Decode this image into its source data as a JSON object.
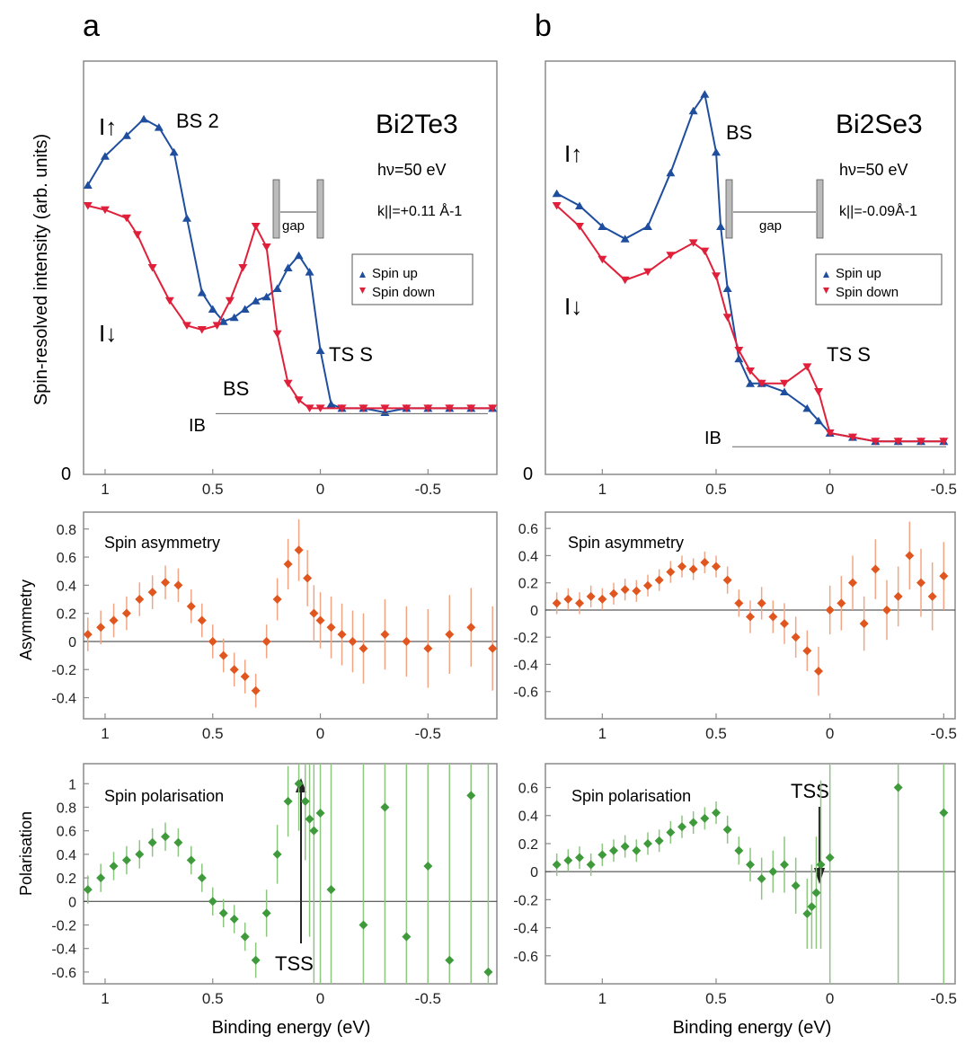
{
  "panel_labels": [
    "a",
    "b"
  ],
  "text": {
    "ylabel_intensity": "Spin-resolved intensity (arb. units)",
    "ylabel_asym": "Asymmetry",
    "ylabel_pol": "Polarisation",
    "xlabel": "Binding energy (eV)",
    "zero_label": "0",
    "title_asym": "Spin asymmetry",
    "title_pol": "Spin polarisation",
    "legend_up": "Spin up",
    "legend_down": "Spin down",
    "gap": "gap",
    "bs": "BS",
    "bs2": "BS 2",
    "tss_top": "TS S",
    "tss": "TSS",
    "i_up": "I↑",
    "i_down": "I↓",
    "i_b": "IB",
    "hv": "hν=50 eV",
    "material_a": "Bi2Te3",
    "material_b": "Bi2Se3",
    "k_a": "k||=+0.11 Å-1",
    "k_b": "k||=-0.09Å-1"
  },
  "colors": {
    "spin_up": "#1f4e9e",
    "spin_down": "#e0203a",
    "asymmetry": "#e0561e",
    "asym_err": "#f2a585",
    "polarisation": "#3e9a3a",
    "pol_err": "#8cc67f",
    "axis": "#8a8a8a"
  },
  "chart_data": [
    {
      "panel": "a",
      "row": "intensity",
      "type": "scatter",
      "xlabel": "",
      "ylabel": "Spin-resolved intensity (arb. units)",
      "xlim": [
        1.1,
        -0.82
      ],
      "xticks": [
        1,
        0.5,
        0,
        -0.5
      ],
      "ylim": [
        0,
        1
      ],
      "series": [
        {
          "name": "Spin up",
          "x": [
            1.08,
            1.0,
            0.9,
            0.82,
            0.75,
            0.68,
            0.62,
            0.55,
            0.5,
            0.45,
            0.4,
            0.35,
            0.3,
            0.25,
            0.2,
            0.15,
            0.1,
            0.05,
            0.0,
            -0.05,
            -0.1,
            -0.2,
            -0.3,
            -0.4,
            -0.5,
            -0.6,
            -0.7,
            -0.8
          ],
          "y": [
            0.7,
            0.77,
            0.82,
            0.86,
            0.84,
            0.78,
            0.62,
            0.44,
            0.4,
            0.37,
            0.38,
            0.4,
            0.42,
            0.43,
            0.45,
            0.5,
            0.53,
            0.49,
            0.3,
            0.17,
            0.16,
            0.16,
            0.15,
            0.16,
            0.16,
            0.16,
            0.16,
            0.16
          ]
        },
        {
          "name": "Spin down",
          "x": [
            1.08,
            1.0,
            0.9,
            0.85,
            0.78,
            0.7,
            0.62,
            0.55,
            0.48,
            0.42,
            0.36,
            0.3,
            0.25,
            0.2,
            0.15,
            0.1,
            0.05,
            0.0,
            -0.1,
            -0.2,
            -0.3,
            -0.4,
            -0.5,
            -0.6,
            -0.7,
            -0.8
          ],
          "y": [
            0.65,
            0.64,
            0.62,
            0.58,
            0.5,
            0.42,
            0.36,
            0.35,
            0.36,
            0.42,
            0.5,
            0.6,
            0.55,
            0.34,
            0.22,
            0.18,
            0.16,
            0.16,
            0.16,
            0.16,
            0.16,
            0.16,
            0.16,
            0.16,
            0.16,
            0.16
          ]
        }
      ]
    },
    {
      "panel": "b",
      "row": "intensity",
      "type": "scatter",
      "xlim": [
        1.25,
        -0.55
      ],
      "xticks": [
        1,
        0.5,
        0,
        -0.5
      ],
      "ylim": [
        0,
        1
      ],
      "series": [
        {
          "name": "Spin up",
          "x": [
            1.2,
            1.1,
            1.0,
            0.9,
            0.8,
            0.7,
            0.6,
            0.55,
            0.5,
            0.48,
            0.45,
            0.4,
            0.35,
            0.3,
            0.2,
            0.1,
            0.05,
            0.0,
            -0.1,
            -0.2,
            -0.3,
            -0.4,
            -0.5
          ],
          "y": [
            0.68,
            0.65,
            0.6,
            0.57,
            0.6,
            0.73,
            0.88,
            0.92,
            0.78,
            0.6,
            0.45,
            0.28,
            0.22,
            0.22,
            0.2,
            0.16,
            0.13,
            0.1,
            0.09,
            0.08,
            0.08,
            0.08,
            0.08
          ]
        },
        {
          "name": "Spin down",
          "x": [
            1.2,
            1.1,
            1.0,
            0.9,
            0.8,
            0.7,
            0.6,
            0.55,
            0.5,
            0.45,
            0.4,
            0.35,
            0.3,
            0.2,
            0.1,
            0.05,
            0.0,
            -0.1,
            -0.2,
            -0.3,
            -0.4,
            -0.5
          ],
          "y": [
            0.65,
            0.6,
            0.52,
            0.47,
            0.49,
            0.53,
            0.56,
            0.54,
            0.48,
            0.38,
            0.3,
            0.25,
            0.22,
            0.22,
            0.26,
            0.2,
            0.1,
            0.09,
            0.08,
            0.08,
            0.08,
            0.08
          ]
        }
      ]
    },
    {
      "panel": "a",
      "row": "asymmetry",
      "type": "scatter",
      "title": "Spin asymmetry",
      "ylabel": "Asymmetry",
      "xlim": [
        1.1,
        -0.82
      ],
      "xticks": [
        1,
        0.5,
        0,
        -0.5
      ],
      "ylim": [
        -0.55,
        0.92
      ],
      "yticks": [
        -0.4,
        -0.2,
        0,
        0.2,
        0.4,
        0.6,
        0.8
      ],
      "x": [
        1.08,
        1.02,
        0.96,
        0.9,
        0.84,
        0.78,
        0.72,
        0.66,
        0.6,
        0.55,
        0.5,
        0.45,
        0.4,
        0.35,
        0.3,
        0.25,
        0.2,
        0.15,
        0.1,
        0.06,
        0.03,
        0.0,
        -0.05,
        -0.1,
        -0.15,
        -0.2,
        -0.3,
        -0.4,
        -0.5,
        -0.6,
        -0.7,
        -0.8
      ],
      "y": [
        0.05,
        0.1,
        0.15,
        0.2,
        0.3,
        0.35,
        0.42,
        0.4,
        0.25,
        0.15,
        0.0,
        -0.1,
        -0.2,
        -0.25,
        -0.35,
        0.0,
        0.3,
        0.55,
        0.65,
        0.45,
        0.2,
        0.15,
        0.1,
        0.05,
        0.0,
        -0.05,
        0.05,
        0.0,
        -0.05,
        0.05,
        0.1,
        -0.05
      ],
      "err": [
        0.12,
        0.12,
        0.12,
        0.12,
        0.12,
        0.12,
        0.12,
        0.12,
        0.12,
        0.12,
        0.12,
        0.12,
        0.12,
        0.12,
        0.12,
        0.12,
        0.15,
        0.18,
        0.22,
        0.2,
        0.2,
        0.2,
        0.22,
        0.22,
        0.22,
        0.25,
        0.25,
        0.25,
        0.28,
        0.28,
        0.28,
        0.3
      ]
    },
    {
      "panel": "b",
      "row": "asymmetry",
      "type": "scatter",
      "title": "Spin asymmetry",
      "xlim": [
        1.25,
        -0.55
      ],
      "xticks": [
        1,
        0.5,
        0,
        -0.5
      ],
      "ylim": [
        -0.8,
        0.72
      ],
      "yticks": [
        -0.6,
        -0.4,
        -0.2,
        0,
        0.2,
        0.4,
        0.6
      ],
      "x": [
        1.2,
        1.15,
        1.1,
        1.05,
        1.0,
        0.95,
        0.9,
        0.85,
        0.8,
        0.75,
        0.7,
        0.65,
        0.6,
        0.55,
        0.5,
        0.45,
        0.4,
        0.35,
        0.3,
        0.25,
        0.2,
        0.15,
        0.1,
        0.05,
        0.0,
        -0.05,
        -0.1,
        -0.15,
        -0.2,
        -0.25,
        -0.3,
        -0.35,
        -0.4,
        -0.45,
        -0.5
      ],
      "y": [
        0.05,
        0.08,
        0.05,
        0.1,
        0.08,
        0.12,
        0.15,
        0.14,
        0.18,
        0.22,
        0.28,
        0.32,
        0.3,
        0.35,
        0.32,
        0.22,
        0.05,
        -0.05,
        0.05,
        -0.05,
        -0.1,
        -0.2,
        -0.3,
        -0.45,
        0.0,
        0.05,
        0.2,
        -0.1,
        0.3,
        0.0,
        0.1,
        0.4,
        0.2,
        0.1,
        0.25
      ],
      "err": [
        0.08,
        0.08,
        0.08,
        0.08,
        0.08,
        0.08,
        0.08,
        0.08,
        0.08,
        0.08,
        0.08,
        0.08,
        0.08,
        0.08,
        0.08,
        0.1,
        0.1,
        0.12,
        0.12,
        0.12,
        0.15,
        0.15,
        0.15,
        0.18,
        0.18,
        0.2,
        0.2,
        0.2,
        0.22,
        0.22,
        0.22,
        0.25,
        0.25,
        0.25,
        0.25
      ]
    },
    {
      "panel": "a",
      "row": "polarisation",
      "type": "scatter",
      "title": "Spin polarisation",
      "ylabel": "Polarisation",
      "xlabel": "Binding energy (eV)",
      "xlim": [
        1.1,
        -0.82
      ],
      "xticks": [
        1,
        0.5,
        0,
        -0.5
      ],
      "ylim": [
        -0.7,
        1.17
      ],
      "yticks": [
        -0.6,
        -0.4,
        -0.2,
        0,
        0.2,
        0.4,
        0.6,
        0.8,
        1
      ],
      "x": [
        1.08,
        1.02,
        0.96,
        0.9,
        0.84,
        0.78,
        0.72,
        0.66,
        0.6,
        0.55,
        0.5,
        0.45,
        0.4,
        0.35,
        0.3,
        0.25,
        0.2,
        0.15,
        0.1,
        0.07,
        0.05,
        0.03,
        0.0,
        -0.05,
        -0.2,
        -0.3,
        -0.4,
        -0.5,
        -0.6,
        -0.7,
        -0.78
      ],
      "y": [
        0.1,
        0.2,
        0.3,
        0.35,
        0.4,
        0.5,
        0.55,
        0.5,
        0.35,
        0.2,
        0.0,
        -0.1,
        -0.15,
        -0.3,
        -0.5,
        -0.1,
        0.4,
        0.85,
        1.0,
        0.85,
        0.7,
        0.6,
        0.75,
        0.1,
        -0.2,
        0.8,
        -0.3,
        0.3,
        -0.5,
        0.9,
        -0.6
      ],
      "err": [
        0.12,
        0.12,
        0.12,
        0.12,
        0.12,
        0.12,
        0.12,
        0.12,
        0.12,
        0.12,
        0.12,
        0.12,
        0.12,
        0.12,
        0.15,
        0.2,
        0.25,
        0.3,
        0.4,
        0.5,
        1.0,
        1.5,
        2,
        2,
        2,
        2,
        2,
        2,
        2,
        2,
        2
      ]
    },
    {
      "panel": "b",
      "row": "polarisation",
      "type": "scatter",
      "title": "Spin polarisation",
      "xlabel": "Binding energy (eV)",
      "xlim": [
        1.25,
        -0.55
      ],
      "xticks": [
        1,
        0.5,
        0,
        -0.5
      ],
      "ylim": [
        -0.8,
        0.77
      ],
      "yticks": [
        -0.6,
        -0.4,
        -0.2,
        0,
        0.2,
        0.4,
        0.6
      ],
      "x": [
        1.2,
        1.15,
        1.1,
        1.05,
        1.0,
        0.95,
        0.9,
        0.85,
        0.8,
        0.75,
        0.7,
        0.65,
        0.6,
        0.55,
        0.5,
        0.45,
        0.4,
        0.35,
        0.3,
        0.25,
        0.2,
        0.15,
        0.1,
        0.08,
        0.06,
        0.04,
        0.0,
        -0.3,
        -0.5
      ],
      "y": [
        0.05,
        0.08,
        0.1,
        0.05,
        0.12,
        0.15,
        0.18,
        0.15,
        0.2,
        0.22,
        0.28,
        0.32,
        0.35,
        0.38,
        0.42,
        0.3,
        0.15,
        0.05,
        -0.05,
        0.0,
        0.05,
        -0.1,
        -0.3,
        -0.25,
        -0.15,
        0.05,
        0.1,
        0.6,
        0.42
      ],
      "err": [
        0.08,
        0.08,
        0.08,
        0.08,
        0.08,
        0.08,
        0.08,
        0.08,
        0.08,
        0.08,
        0.08,
        0.08,
        0.08,
        0.08,
        0.08,
        0.1,
        0.1,
        0.12,
        0.15,
        0.15,
        0.2,
        0.2,
        0.25,
        0.3,
        0.4,
        0.6,
        1.0,
        1.5,
        1.5
      ]
    }
  ]
}
